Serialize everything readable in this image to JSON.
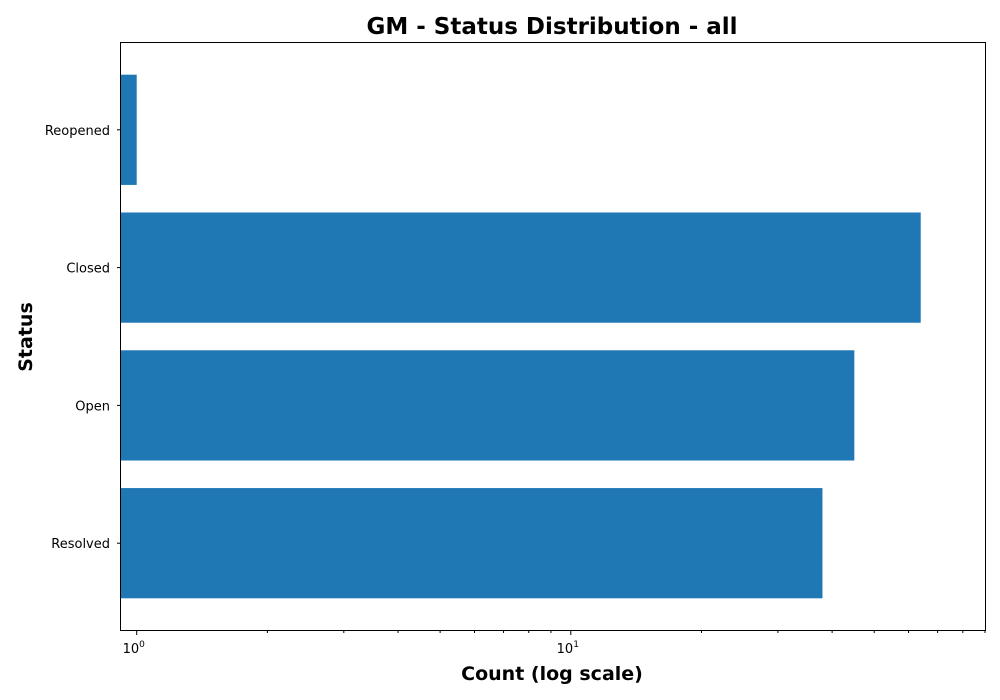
{
  "chart_data": {
    "type": "bar",
    "orientation": "horizontal",
    "title": "GM - Status Distribution - all",
    "xlabel": "Count (log scale)",
    "ylabel": "Status",
    "x_scale": "log",
    "xlim": [
      0.92,
      90
    ],
    "x_major_ticks": [
      {
        "value": 1,
        "base": "10",
        "exponent": "0"
      },
      {
        "value": 10,
        "base": "10",
        "exponent": "1"
      }
    ],
    "categories": [
      "Reopened",
      "Closed",
      "Open",
      "Resolved"
    ],
    "values": [
      1,
      64,
      45,
      38
    ],
    "bar_color": "#1f77b4",
    "grid": false,
    "legend": "none"
  }
}
